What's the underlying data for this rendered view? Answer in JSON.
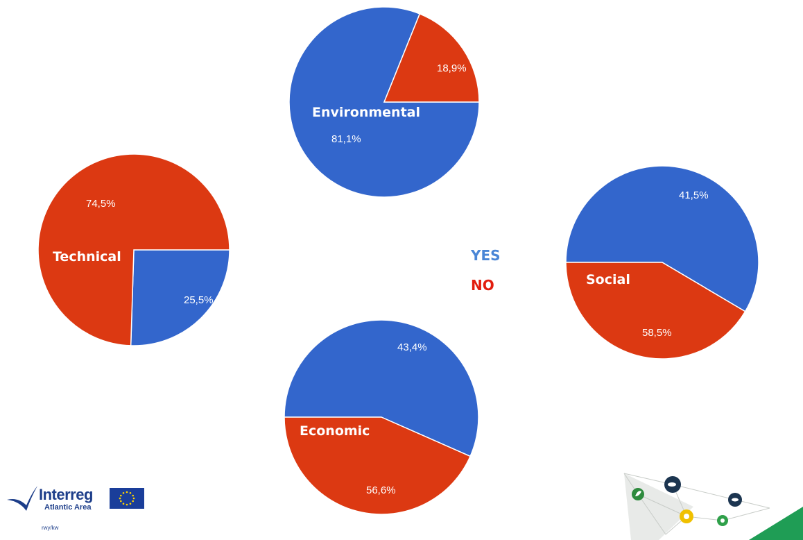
{
  "colors": {
    "yes": "#3366cc",
    "no": "#dc3912",
    "yes_legend": "#4a86d6",
    "no_legend": "#e21d0e"
  },
  "legend": {
    "yes": "YES",
    "no": "NO"
  },
  "chart_data": [
    {
      "type": "pie",
      "title": "Environmental",
      "categories": [
        "YES",
        "NO"
      ],
      "values": [
        81.1,
        18.9
      ],
      "labels": [
        "81,1%",
        "18,9%"
      ]
    },
    {
      "type": "pie",
      "title": "Technical",
      "categories": [
        "YES",
        "NO"
      ],
      "values": [
        25.5,
        74.5
      ],
      "labels": [
        "25,5%",
        "74,5%"
      ]
    },
    {
      "type": "pie",
      "title": "Social",
      "categories": [
        "YES",
        "NO"
      ],
      "values": [
        58.5,
        41.5
      ],
      "labels": [
        "58,5%",
        "41,5%"
      ]
    },
    {
      "type": "pie",
      "title": "Economic",
      "categories": [
        "YES",
        "NO"
      ],
      "values": [
        56.6,
        43.4
      ],
      "labels": [
        "56,6%",
        "43,4%"
      ]
    }
  ],
  "logo": {
    "word": "Interreg",
    "sub": "Atlantic Area",
    "small": "rwy/kw"
  },
  "network_icons": [
    "leaf-icon",
    "fish-icon",
    "sun-icon",
    "plant-icon",
    "fish-icon"
  ]
}
